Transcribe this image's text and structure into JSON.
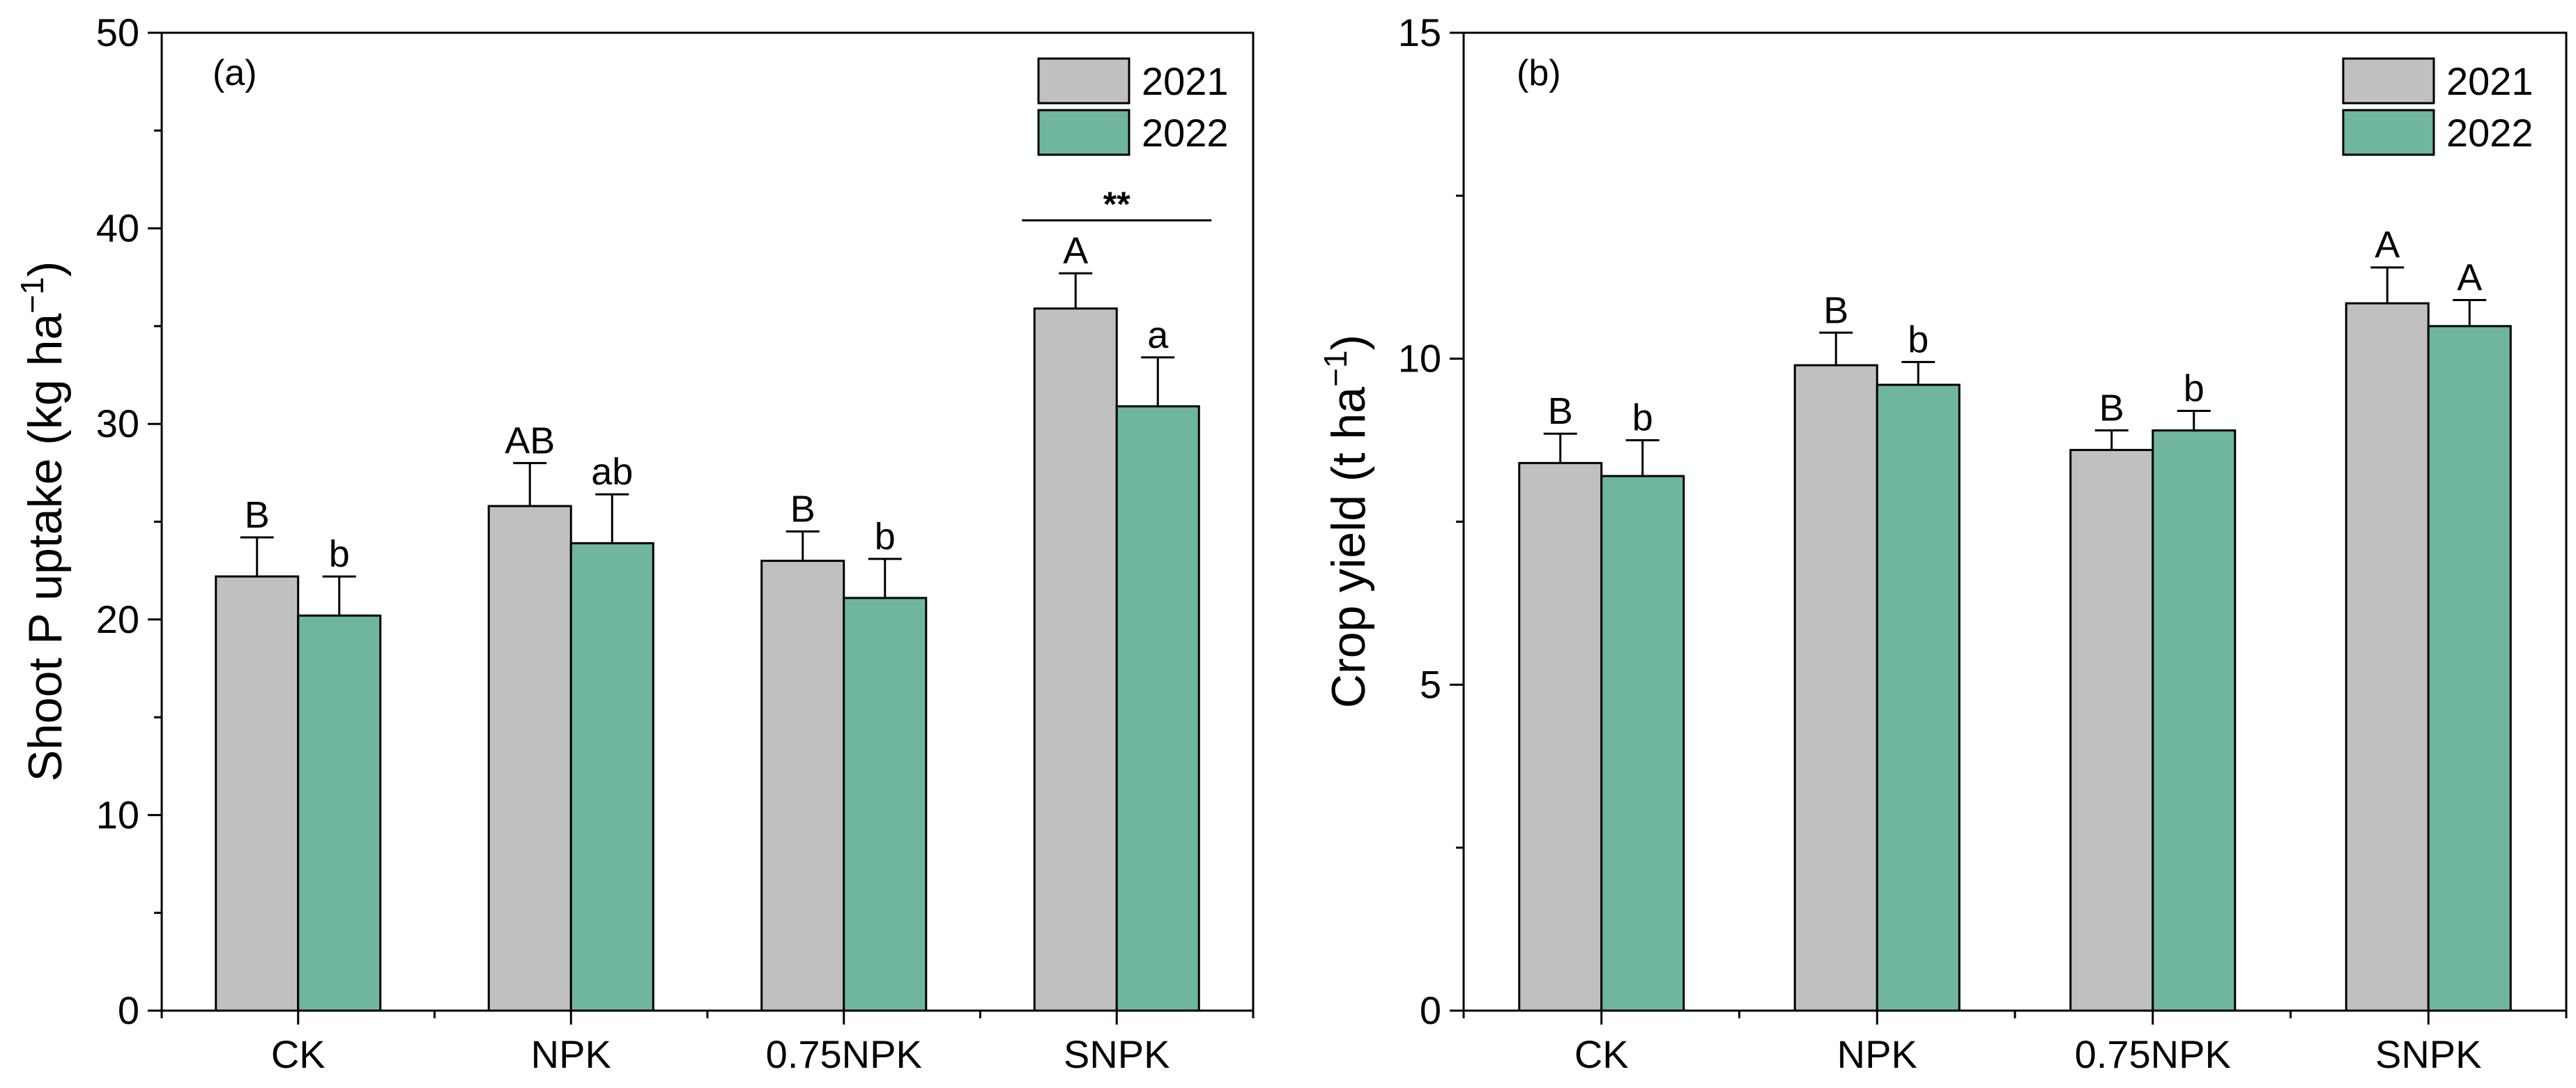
{
  "colors": {
    "y2021": "#c0c0c0",
    "y2022": "#6fb5a0",
    "stroke": "#000000"
  },
  "legend": {
    "entries": [
      "2021",
      "2022"
    ],
    "placement": "top-right"
  },
  "chart_data": [
    {
      "type": "bar",
      "panel_label": "(a)",
      "title": "",
      "xlabel": "",
      "ylabel": "Shoot P uptake (kg ha",
      "ylabel_sup": "−1",
      "ylabel_close": ")",
      "ylim": [
        0,
        50
      ],
      "yticks": [
        "0",
        "10",
        "20",
        "30",
        "40",
        "50"
      ],
      "categories": [
        "CK",
        "NPK",
        "0.75NPK",
        "SNPK"
      ],
      "series": [
        {
          "name": "2021",
          "values": [
            22.2,
            25.8,
            23.0,
            35.9
          ],
          "errors": [
            2.0,
            2.2,
            1.5,
            1.8
          ],
          "letters": [
            "B",
            "AB",
            "B",
            "A"
          ]
        },
        {
          "name": "2022",
          "values": [
            20.2,
            23.9,
            21.1,
            30.9
          ],
          "errors": [
            2.0,
            2.5,
            2.0,
            2.5
          ],
          "letters": [
            "b",
            "ab",
            "b",
            "a"
          ]
        }
      ],
      "significance": {
        "category": "SNPK",
        "label": "**"
      }
    },
    {
      "type": "bar",
      "panel_label": "(b)",
      "title": "",
      "xlabel": "",
      "ylabel": "Crop yield (t ha",
      "ylabel_sup": "−1",
      "ylabel_close": ")",
      "ylim": [
        0,
        15
      ],
      "yticks": [
        "0",
        "5",
        "10",
        "15"
      ],
      "categories": [
        "CK",
        "NPK",
        "0.75NPK",
        "SNPK"
      ],
      "series": [
        {
          "name": "2021",
          "values": [
            8.4,
            9.9,
            8.6,
            10.85
          ],
          "errors": [
            0.45,
            0.5,
            0.3,
            0.55
          ],
          "letters": [
            "B",
            "B",
            "B",
            "A"
          ]
        },
        {
          "name": "2022",
          "values": [
            8.2,
            9.6,
            8.9,
            10.5
          ],
          "errors": [
            0.55,
            0.35,
            0.3,
            0.4
          ],
          "letters": [
            "b",
            "b",
            "b",
            "A"
          ]
        }
      ]
    }
  ]
}
